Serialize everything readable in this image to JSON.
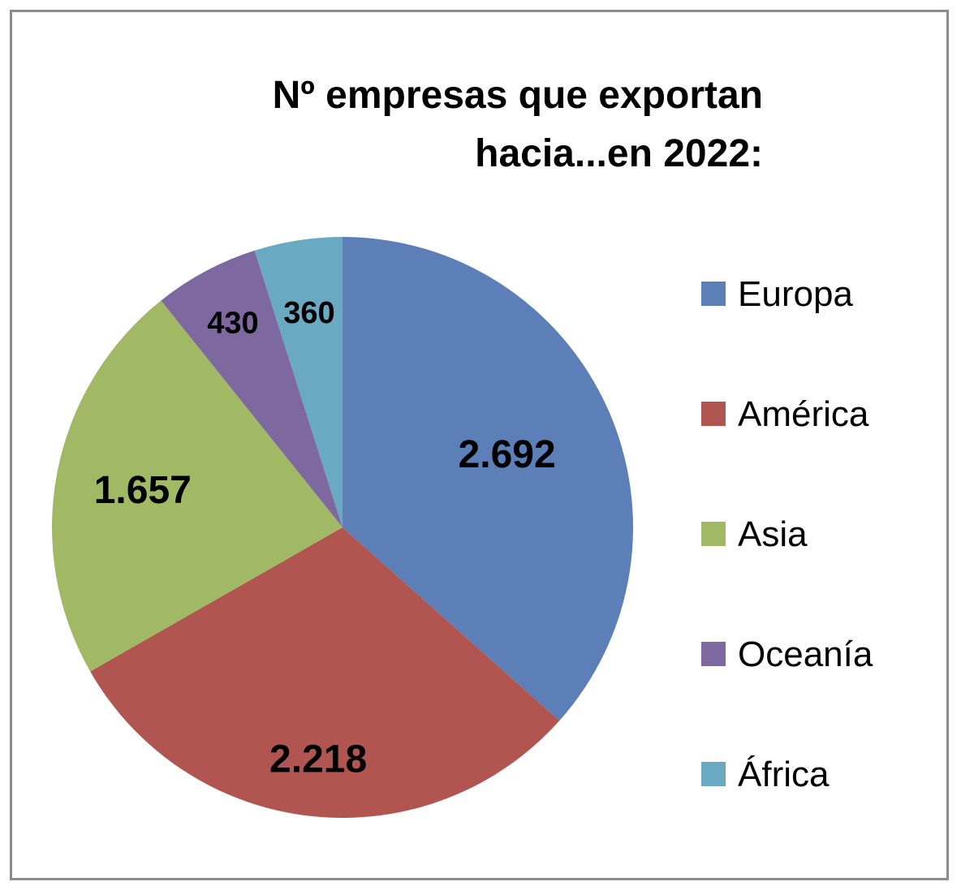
{
  "chart_data": {
    "type": "pie",
    "title_lines": [
      "Nº empresas que exportan",
      "hacia...en 2022:"
    ],
    "categories": [
      "Europa",
      "América",
      "Asia",
      "Oceanía",
      "África"
    ],
    "values": [
      2692,
      2218,
      1657,
      430,
      360
    ],
    "value_labels": [
      "2.692",
      "2.218",
      "1.657",
      "430",
      "360"
    ],
    "colors": [
      "#5b7fb6",
      "#b0554f",
      "#a1b865",
      "#7e68a0",
      "#69a9c2"
    ],
    "legend_position": "right",
    "start_angle": "12 o'clock",
    "direction": "clockwise"
  }
}
